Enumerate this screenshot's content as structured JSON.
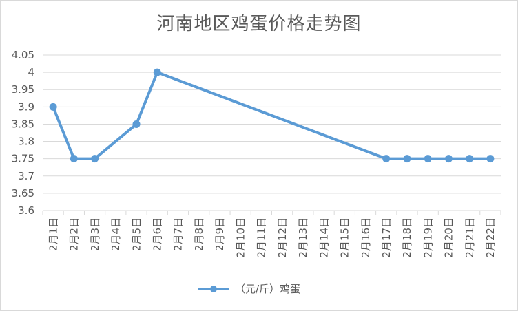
{
  "chart_data": {
    "type": "line",
    "title": "河南地区鸡蛋价格走势图",
    "categories": [
      "2月1日",
      "2月2日",
      "2月3日",
      "2月4日",
      "2月5日",
      "2月6日",
      "2月7日",
      "2月8日",
      "2月9日",
      "2月10日",
      "2月11日",
      "2月12日",
      "2月13日",
      "2月14日",
      "2月15日",
      "2月16日",
      "2月17日",
      "2月18日",
      "2月19日",
      "2月20日",
      "2月21日",
      "2月22日"
    ],
    "series": [
      {
        "name": "（元/斤）鸡蛋",
        "points": [
          [
            0,
            3.9
          ],
          [
            1,
            3.75
          ],
          [
            2,
            3.75
          ],
          [
            4,
            3.85
          ],
          [
            5,
            4.0
          ],
          [
            16,
            3.75
          ],
          [
            17,
            3.75
          ],
          [
            18,
            3.75
          ],
          [
            19,
            3.75
          ],
          [
            20,
            3.75
          ],
          [
            21,
            3.75
          ]
        ]
      }
    ],
    "yticks": [
      "3.6",
      "3.65",
      "3.7",
      "3.75",
      "3.8",
      "3.85",
      "3.9",
      "3.95",
      "4",
      "4.05"
    ],
    "ylim": [
      3.6,
      4.05
    ],
    "grid": true,
    "legend_position": "bottom",
    "colors": {
      "line": "#5b9bd5",
      "grid": "#d9d9d9",
      "text": "#595959"
    }
  }
}
